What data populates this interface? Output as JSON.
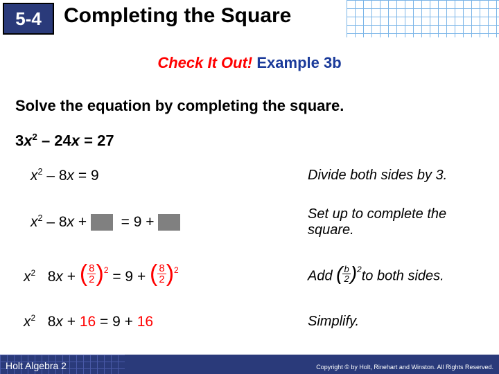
{
  "header": {
    "chapter": "5-4",
    "title": "Completing the Square"
  },
  "check": {
    "red": "Check It Out!",
    "blue": " Example 3b"
  },
  "instruction": "Solve the equation by completing the square.",
  "equation": "3x² – 24x = 27",
  "steps": [
    {
      "math_html": "<span class='italic-x'>x</span><span class='sup'>2</span> – 8<span class='italic-x'>x</span> = 9",
      "explain": "Divide both sides by 3."
    },
    {
      "math_html": "<span class='italic-x'>x</span><span class='sup'>2</span> – 8<span class='italic-x'>x</span> + <span class='greybox'></span>&nbsp;&nbsp;= 9 + <span class='greybox'></span>",
      "explain": "Set up to complete the square."
    },
    {
      "math_html": "<span class='italic-x'>x</span><span class='sup' style='font-size:12px'>2</span>&nbsp;&nbsp;&nbsp;8<span class='italic-x'>x</span> + <span class='redfrac paren-eq'><span class='bigparen'>(</span><span class='frac'><span class='num'>8</span><span class='den'>2</span></span><span class='bigparen'>)</span><span class='supout'>2</span></span> = 9 + <span class='redfrac paren-eq'><span class='bigparen'>(</span><span class='frac'><span class='num'>8</span><span class='den'>2</span></span><span class='bigparen'>)</span><span class='supout'>2</span></span>",
      "explain_html": "Add <span class='paren-eq'><span class='bigparen' style='font-size:28px'>(</span><span class='frac' style='font-size:13px'><span class='num'>b</span><span class='den'>2</span></span><span class='bigparen' style='font-size:28px'>)</span><span class='supout'>2</span></span>to both sides."
    },
    {
      "math_html": "<span class='italic-x'>x</span><span class='sup' style='font-size:12px'>2</span>&nbsp;&nbsp;&nbsp;8<span class='italic-x'>x</span> + <span style='color:#ff0000'>16</span> = 9 + <span style='color:#ff0000'>16</span>",
      "explain": "Simplify."
    }
  ],
  "footer": {
    "book": "Holt Algebra 2",
    "copyright": "Copyright © by Holt, Rinehart and Winston. All Rights Reserved."
  },
  "colors": {
    "header_box": "#2a3a7a",
    "red": "#ff0000",
    "blue": "#1a3a9a",
    "footer": "#2a3a7a"
  }
}
